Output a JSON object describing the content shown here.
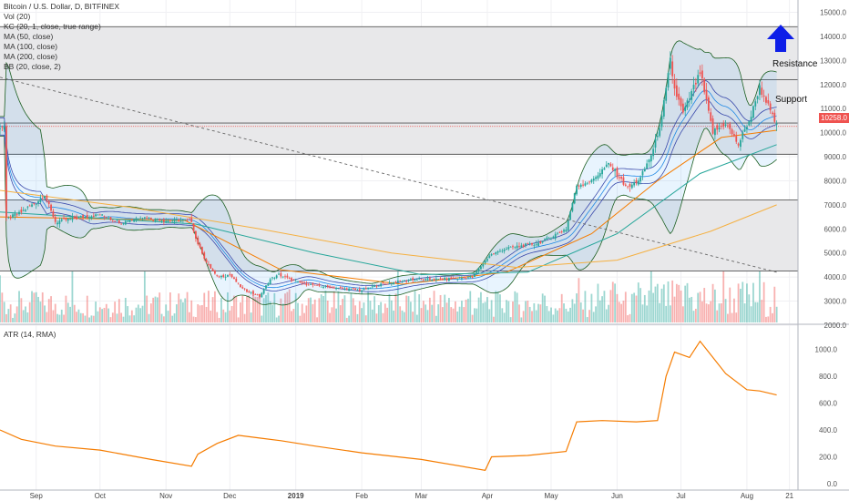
{
  "legend": {
    "title": "Bitcoin / U.S. Dollar, D, BITFINEX",
    "vol": "Vol (20)",
    "kc": "KC (20, 1, close, true range)",
    "ma50": "MA (50, close)",
    "ma100": "MA (100, close)",
    "ma200": "MA (200, close)",
    "bb": "BB (20, close, 2)"
  },
  "atr_legend": "ATR (14, RMA)",
  "current_price_label": "10258.0",
  "annotations": {
    "resistance": "Resistance",
    "support": "Support"
  },
  "colors": {
    "up": "#26a69a",
    "down": "#ef5350",
    "ma50": "#f57c00",
    "ma100": "#26a69a",
    "ma200": "#f5b041",
    "bb": "#1b5e20",
    "kc": "#3949ab",
    "atr": "#f57c00",
    "arrow": "#0d1ee8"
  },
  "chart_data": [
    {
      "type": "candlestick",
      "title": "Bitcoin / U.S. Dollar, D, BITFINEX",
      "xlabel": "",
      "ylabel": "",
      "x_ticks": [
        "Sep",
        "Oct",
        "Nov",
        "Dec",
        "2019",
        "Feb",
        "Mar",
        "Apr",
        "May",
        "Jun",
        "Jul",
        "Aug",
        "21"
      ],
      "y_ticks": [
        "2000.0",
        "3000.0",
        "4000.0",
        "5000.0",
        "6000.0",
        "7000.0",
        "8000.0",
        "9000.0",
        "10000.0",
        "11000.0",
        "12000.0",
        "13000.0",
        "14000.0",
        "15000.0"
      ],
      "ylim": [
        2000,
        15000
      ],
      "close_path": [
        [
          "2018-08-18",
          6400
        ],
        [
          "2018-08-25",
          6700
        ],
        [
          "2018-09-01",
          7100
        ],
        [
          "2018-09-05",
          7400
        ],
        [
          "2018-09-10",
          6300
        ],
        [
          "2018-09-20",
          6450
        ],
        [
          "2018-10-01",
          6600
        ],
        [
          "2018-10-11",
          6250
        ],
        [
          "2018-10-20",
          6500
        ],
        [
          "2018-11-01",
          6350
        ],
        [
          "2018-11-13",
          6350
        ],
        [
          "2018-11-15",
          5600
        ],
        [
          "2018-11-20",
          4600
        ],
        [
          "2018-11-25",
          4000
        ],
        [
          "2018-12-01",
          4100
        ],
        [
          "2018-12-07",
          3500
        ],
        [
          "2018-12-15",
          3200
        ],
        [
          "2018-12-20",
          3900
        ],
        [
          "2018-12-24",
          4100
        ],
        [
          "2019-01-01",
          3800
        ],
        [
          "2019-01-10",
          3650
        ],
        [
          "2019-01-20",
          3550
        ],
        [
          "2019-02-01",
          3450
        ],
        [
          "2019-02-08",
          3650
        ],
        [
          "2019-02-24",
          3900
        ],
        [
          "2019-03-10",
          3900
        ],
        [
          "2019-03-25",
          4000
        ],
        [
          "2019-04-02",
          4900
        ],
        [
          "2019-04-10",
          5200
        ],
        [
          "2019-04-25",
          5400
        ],
        [
          "2019-05-08",
          6000
        ],
        [
          "2019-05-13",
          7800
        ],
        [
          "2019-05-20",
          8000
        ],
        [
          "2019-05-28",
          8700
        ],
        [
          "2019-06-06",
          7700
        ],
        [
          "2019-06-12",
          8100
        ],
        [
          "2019-06-18",
          9300
        ],
        [
          "2019-06-22",
          10600
        ],
        [
          "2019-06-26",
          13000
        ],
        [
          "2019-06-28",
          11800
        ],
        [
          "2019-07-02",
          10800
        ],
        [
          "2019-07-10",
          12500
        ],
        [
          "2019-07-16",
          10000
        ],
        [
          "2019-07-22",
          10400
        ],
        [
          "2019-07-28",
          9500
        ],
        [
          "2019-08-03",
          10700
        ],
        [
          "2019-08-07",
          11900
        ],
        [
          "2019-08-10",
          11300
        ],
        [
          "2019-08-15",
          10258
        ]
      ],
      "series": [
        {
          "name": "MA (50, close)",
          "x": [
            "2018-08-15",
            "2018-11-10",
            "2018-12-25",
            "2019-02-20",
            "2019-04-10",
            "2019-05-20",
            "2019-06-20",
            "2019-07-20",
            "2019-08-15"
          ],
          "values": [
            6500,
            6350,
            4300,
            3700,
            4200,
            5800,
            8000,
            9800,
            10100
          ]
        },
        {
          "name": "MA (100, close)",
          "x": [
            "2018-08-15",
            "2018-11-15",
            "2019-01-10",
            "2019-03-01",
            "2019-04-20",
            "2019-06-01",
            "2019-07-10",
            "2019-08-15"
          ],
          "values": [
            6700,
            6200,
            5000,
            4100,
            4200,
            5800,
            8300,
            9500
          ]
        },
        {
          "name": "MA (200, close)",
          "x": [
            "2018-08-15",
            "2018-10-15",
            "2018-12-15",
            "2019-02-15",
            "2019-04-15",
            "2019-06-01",
            "2019-07-15",
            "2019-08-15"
          ],
          "values": [
            7600,
            6900,
            6000,
            5000,
            4400,
            4700,
            5900,
            7000
          ]
        }
      ],
      "horizontal_lines": [
        14400,
        12200,
        10400,
        9100,
        7200,
        4250
      ],
      "trendline": [
        [
          "2018-08-15",
          12300
        ],
        [
          "2019-08-15",
          4200
        ]
      ],
      "current_price": 10258.0
    },
    {
      "type": "line",
      "title": "ATR (14, RMA)",
      "xlabel": "",
      "ylabel": "",
      "y_ticks": [
        "0.0",
        "200.0",
        "400.0",
        "600.0",
        "800.0",
        "1000.0"
      ],
      "ylim": [
        0,
        1100
      ],
      "series": [
        {
          "name": "ATR (14, RMA)",
          "x": [
            "2018-08-15",
            "2018-08-25",
            "2018-09-10",
            "2018-10-01",
            "2018-10-25",
            "2018-11-13",
            "2018-11-16",
            "2018-11-25",
            "2018-12-05",
            "2018-12-15",
            "2018-12-25",
            "2019-01-10",
            "2019-02-01",
            "2019-03-01",
            "2019-03-31",
            "2019-04-03",
            "2019-04-20",
            "2019-05-08",
            "2019-05-13",
            "2019-05-25",
            "2019-06-10",
            "2019-06-20",
            "2019-06-24",
            "2019-06-28",
            "2019-07-05",
            "2019-07-10",
            "2019-07-22",
            "2019-08-01",
            "2019-08-07",
            "2019-08-15"
          ],
          "values": [
            400,
            330,
            280,
            250,
            180,
            130,
            220,
            300,
            360,
            340,
            320,
            280,
            230,
            180,
            100,
            200,
            210,
            240,
            460,
            470,
            460,
            470,
            800,
            980,
            940,
            1060,
            820,
            700,
            690,
            660
          ]
        }
      ]
    }
  ]
}
